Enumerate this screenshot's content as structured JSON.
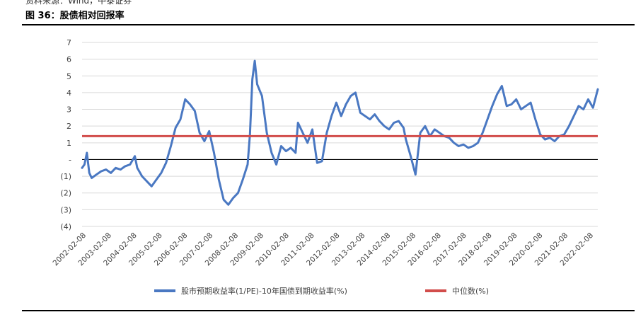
{
  "header": {
    "source_text": "资料来源：Wind，中泰证券",
    "figure_title": "图 36：股债相对回报率"
  },
  "colors": {
    "series_main": "#4A78C2",
    "series_median": "#D24D4B",
    "grid": "#D9D9D9",
    "axis": "#000000"
  },
  "chart_data": {
    "type": "line",
    "title": "图 36：股债相对回报率",
    "xlabel": "",
    "ylabel": "",
    "ylim": [
      -4,
      7
    ],
    "y_ticks": [
      -4,
      -3,
      -2,
      -1,
      0,
      1,
      2,
      3,
      4,
      5,
      6,
      7
    ],
    "y_tick_labels": [
      "(4)",
      "(3)",
      "(2)",
      "(1)",
      "-",
      "1",
      "2",
      "3",
      "4",
      "5",
      "6",
      "7"
    ],
    "x_tick_labels": [
      "2002-02-08",
      "2003-02-08",
      "2004-02-08",
      "2005-02-08",
      "2006-02-08",
      "2007-02-08",
      "2008-02-08",
      "2009-02-08",
      "2010-02-08",
      "2011-02-08",
      "2012-02-08",
      "2013-02-08",
      "2014-02-08",
      "2015-02-08",
      "2016-02-08",
      "2017-02-08",
      "2018-02-08",
      "2019-02-08",
      "2020-02-08",
      "2021-02-08",
      "2022-02-08"
    ],
    "grid": true,
    "legend_position": "bottom",
    "series": [
      {
        "name": "股市预期收益率(1/PE)-10年国债到期收益率(%)",
        "color": "#4A78C2",
        "x": [
          2002.0,
          2002.1,
          2002.2,
          2002.3,
          2002.4,
          2002.6,
          2002.8,
          2003.0,
          2003.2,
          2003.4,
          2003.6,
          2003.8,
          2004.0,
          2004.2,
          2004.3,
          2004.5,
          2004.7,
          2004.9,
          2005.1,
          2005.3,
          2005.5,
          2005.7,
          2005.9,
          2006.1,
          2006.3,
          2006.5,
          2006.7,
          2006.9,
          2007.1,
          2007.3,
          2007.5,
          2007.7,
          2007.9,
          2008.1,
          2008.3,
          2008.5,
          2008.7,
          2008.9,
          2009.0,
          2009.1,
          2009.2,
          2009.3,
          2009.5,
          2009.7,
          2009.9,
          2010.1,
          2010.3,
          2010.5,
          2010.7,
          2010.9,
          2011.0,
          2011.2,
          2011.4,
          2011.6,
          2011.8,
          2012.0,
          2012.2,
          2012.4,
          2012.6,
          2012.8,
          2013.0,
          2013.2,
          2013.4,
          2013.6,
          2013.8,
          2014.0,
          2014.2,
          2014.4,
          2014.6,
          2014.8,
          2015.0,
          2015.2,
          2015.4,
          2015.5,
          2015.7,
          2015.9,
          2016.1,
          2016.3,
          2016.5,
          2016.7,
          2016.9,
          2017.1,
          2017.3,
          2017.5,
          2017.7,
          2017.9,
          2018.1,
          2018.3,
          2018.5,
          2018.7,
          2018.9,
          2019.1,
          2019.3,
          2019.5,
          2019.7,
          2019.9,
          2020.1,
          2020.3,
          2020.5,
          2020.7,
          2020.9,
          2021.1,
          2021.3,
          2021.5,
          2021.7,
          2021.9,
          2022.1,
          2022.3,
          2022.5,
          2022.7,
          2022.9,
          2023.1,
          2023.3,
          2023.5
        ],
        "y": [
          -0.5,
          -0.3,
          0.4,
          -0.8,
          -1.1,
          -0.9,
          -0.7,
          -0.6,
          -0.8,
          -0.5,
          -0.6,
          -0.4,
          -0.3,
          0.2,
          -0.5,
          -1.0,
          -1.3,
          -1.6,
          -1.2,
          -0.8,
          -0.2,
          0.8,
          1.9,
          2.4,
          3.6,
          3.3,
          2.9,
          1.6,
          1.1,
          1.7,
          0.4,
          -1.2,
          -2.4,
          -2.7,
          -2.3,
          -2.0,
          -1.2,
          -0.3,
          1.5,
          4.8,
          5.9,
          4.5,
          3.8,
          1.6,
          0.4,
          -0.3,
          0.8,
          0.5,
          0.7,
          0.4,
          2.2,
          1.6,
          1.0,
          1.8,
          -0.2,
          -0.1,
          1.6,
          2.6,
          3.4,
          2.6,
          3.3,
          3.8,
          4.0,
          2.8,
          2.6,
          2.4,
          2.7,
          2.3,
          2.0,
          1.8,
          2.2,
          2.3,
          1.9,
          1.2,
          0.2,
          -0.9,
          1.6,
          2.0,
          1.4,
          1.8,
          1.6,
          1.4,
          1.3,
          1.0,
          0.8,
          0.9,
          0.7,
          0.8,
          1.0,
          1.6,
          2.4,
          3.2,
          3.9,
          4.4,
          3.2,
          3.3,
          3.6,
          3.0,
          3.2,
          3.4,
          2.4,
          1.5,
          1.2,
          1.3,
          1.1,
          1.4,
          1.5,
          2.0,
          2.6,
          3.2,
          3.0,
          3.6,
          3.1,
          4.2
        ]
      },
      {
        "name": "中位数(%)",
        "color": "#D24D4B",
        "x": [
          2002.0,
          2023.5
        ],
        "y": [
          1.4,
          1.4
        ]
      }
    ]
  }
}
